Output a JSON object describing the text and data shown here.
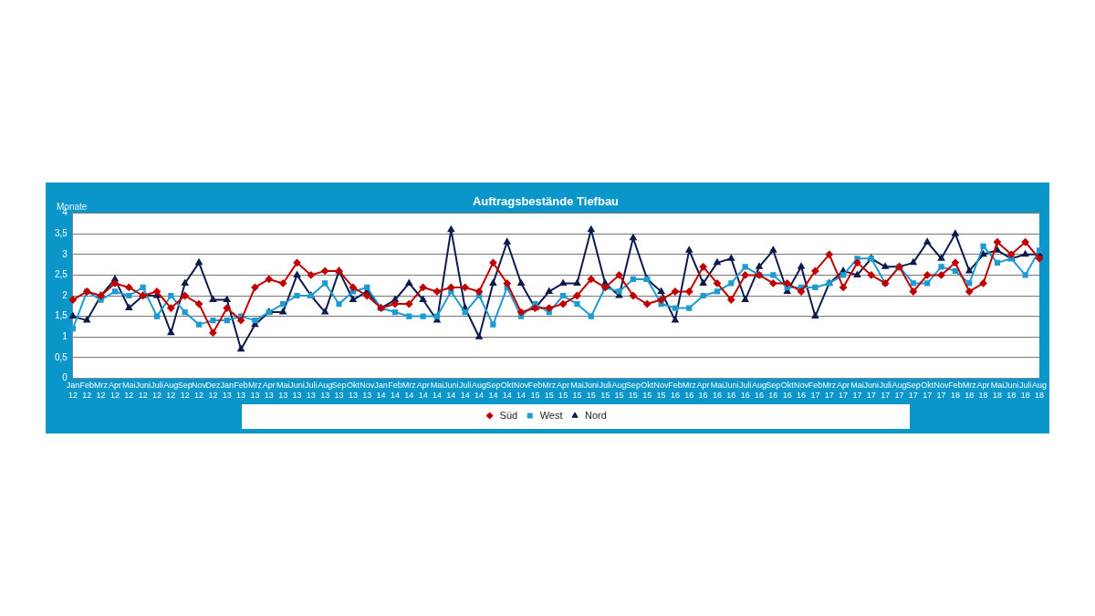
{
  "chart_data": {
    "type": "line",
    "title": "Auftragsbestände Tiefbau",
    "ylabel": "Monate",
    "categories": [
      "Jan 12",
      "Feb 12",
      "Mrz 12",
      "Apr 12",
      "Mai 12",
      "Juni 12",
      "Juli 12",
      "Aug 12",
      "Sep 12",
      "Nov 12",
      "Dez 12",
      "Jan 13",
      "Feb 13",
      "Mrz 13",
      "Apr 13",
      "Mai 13",
      "Juni 13",
      "Juli 13",
      "Aug 13",
      "Sep 13",
      "Okt 13",
      "Nov 13",
      "Jan 14",
      "Feb 14",
      "Mrz 14",
      "Apr 14",
      "Mai 14",
      "Juni 14",
      "Juli 14",
      "Aug 14",
      "Sep 14",
      "Okt 14",
      "Nov 14",
      "Feb 15",
      "Mrz 15",
      "Apr 15",
      "Mai 15",
      "Juni 15",
      "Juli 15",
      "Aug 15",
      "Sep 15",
      "Okt 15",
      "Nov 15",
      "Feb 16",
      "Mrz 16",
      "Apr 16",
      "Mai 16",
      "Juni 16",
      "Juli 16",
      "Aug 16",
      "Sep 16",
      "Okt 16",
      "Nov 16",
      "Feb 17",
      "Mrz 17",
      "Apr 17",
      "Mai 17",
      "Juni 17",
      "Juli 17",
      "Aug 17",
      "Sep 17",
      "Okt 17",
      "Nov 17",
      "Feb 18",
      "Mrz 18",
      "Apr 18",
      "Mai 18",
      "Juni 18",
      "Juli 18",
      "Aug 18"
    ],
    "series": [
      {
        "name": "Süd",
        "color": "#c00000",
        "marker": "diamond",
        "values": [
          1.9,
          2.1,
          2.0,
          2.3,
          2.2,
          2.0,
          2.1,
          1.7,
          2.0,
          1.8,
          1.1,
          1.7,
          1.4,
          2.2,
          2.4,
          2.3,
          2.8,
          2.5,
          2.6,
          2.6,
          2.2,
          2.0,
          1.7,
          1.8,
          1.8,
          2.2,
          2.1,
          2.2,
          2.2,
          2.1,
          2.8,
          2.3,
          1.6,
          1.7,
          1.7,
          1.8,
          2.0,
          2.4,
          2.2,
          2.5,
          2.0,
          1.8,
          1.9,
          2.1,
          2.1,
          2.7,
          2.3,
          1.9,
          2.5,
          2.5,
          2.3,
          2.3,
          2.1,
          2.6,
          3.0,
          2.2,
          2.8,
          2.5,
          2.3,
          2.7,
          2.1,
          2.5,
          2.5,
          2.8,
          2.1,
          2.3,
          3.3,
          3.0,
          3.3,
          2.9
        ]
      },
      {
        "name": "West",
        "color": "#1e9bd0",
        "marker": "square",
        "values": [
          1.2,
          2.1,
          1.9,
          2.1,
          2.0,
          2.2,
          1.5,
          2.0,
          1.6,
          1.3,
          1.4,
          1.4,
          1.5,
          1.4,
          1.6,
          1.8,
          2.0,
          2.0,
          2.3,
          1.8,
          2.1,
          2.2,
          1.7,
          1.6,
          1.5,
          1.5,
          1.5,
          2.1,
          1.6,
          2.0,
          1.3,
          2.2,
          1.5,
          1.8,
          1.6,
          2.0,
          1.8,
          1.5,
          2.2,
          2.1,
          2.4,
          2.4,
          1.8,
          1.7,
          1.7,
          2.0,
          2.1,
          2.3,
          2.7,
          2.5,
          2.5,
          2.2,
          2.2,
          2.2,
          2.3,
          2.5,
          2.9,
          2.9,
          2.3,
          2.7,
          2.3,
          2.3,
          2.7,
          2.6,
          2.3,
          3.2,
          2.8,
          2.9,
          2.5,
          3.1
        ]
      },
      {
        "name": "Nord",
        "color": "#0d1a4f",
        "marker": "triangle",
        "values": [
          1.5,
          1.4,
          2.0,
          2.4,
          1.7,
          2.0,
          2.0,
          1.1,
          2.3,
          2.8,
          1.9,
          1.9,
          0.7,
          1.3,
          1.6,
          1.6,
          2.5,
          2.0,
          1.6,
          2.6,
          1.9,
          2.1,
          1.7,
          1.9,
          2.3,
          1.9,
          1.4,
          3.6,
          1.7,
          1.0,
          2.3,
          3.3,
          2.3,
          1.7,
          2.1,
          2.3,
          2.3,
          3.6,
          2.3,
          2.0,
          3.4,
          2.4,
          2.1,
          1.4,
          3.1,
          2.3,
          2.8,
          2.9,
          1.9,
          2.7,
          3.1,
          2.1,
          2.7,
          1.5,
          2.3,
          2.6,
          2.5,
          2.9,
          2.7,
          2.7,
          2.8,
          3.3,
          2.9,
          3.5,
          2.6,
          3.0,
          3.1,
          2.9,
          3.0,
          3.0
        ]
      }
    ],
    "ylim": [
      0,
      4
    ],
    "yticks": [
      0,
      {
        "value": 0.5,
        "label": "0,5"
      },
      1,
      {
        "value": 1.5,
        "label": "1,5"
      },
      2,
      {
        "value": 2.5,
        "label": "2,5"
      },
      3,
      {
        "value": 3.5,
        "label": "3,5"
      },
      4
    ],
    "grid": "y",
    "legend": "bottom",
    "line_style": "solid"
  }
}
